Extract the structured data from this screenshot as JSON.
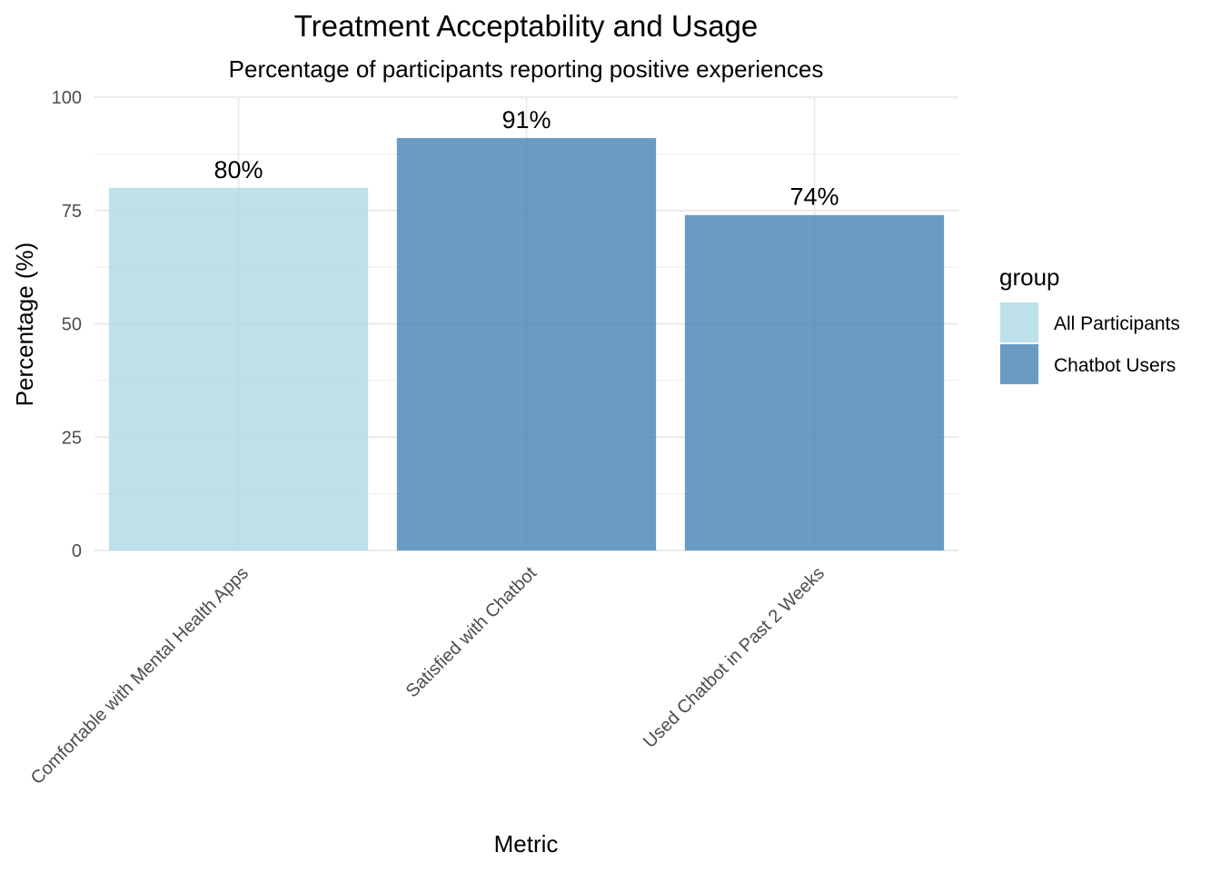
{
  "chart_data": {
    "type": "bar",
    "title": "Treatment Acceptability and Usage",
    "subtitle": "Percentage of participants reporting positive experiences",
    "xlabel": "Metric",
    "ylabel": "Percentage (%)",
    "ylim": [
      0,
      100
    ],
    "yticks": [
      "0",
      "25",
      "50",
      "75",
      "100"
    ],
    "categories": [
      "Comfortable with Mental Health Apps",
      "Satisfied with Chatbot",
      "Used Chatbot in Past 2 Weeks"
    ],
    "values": [
      80,
      91,
      74
    ],
    "data_labels": [
      "80%",
      "91%",
      "74%"
    ],
    "groups": [
      "All Participants",
      "Chatbot Users",
      "Chatbot Users"
    ],
    "grid": true,
    "legend": {
      "title": "group",
      "position": "right",
      "entries": [
        {
          "name": "All Participants",
          "color": "#add8e6"
        },
        {
          "name": "Chatbot Users",
          "color": "#4682b4"
        }
      ]
    }
  }
}
